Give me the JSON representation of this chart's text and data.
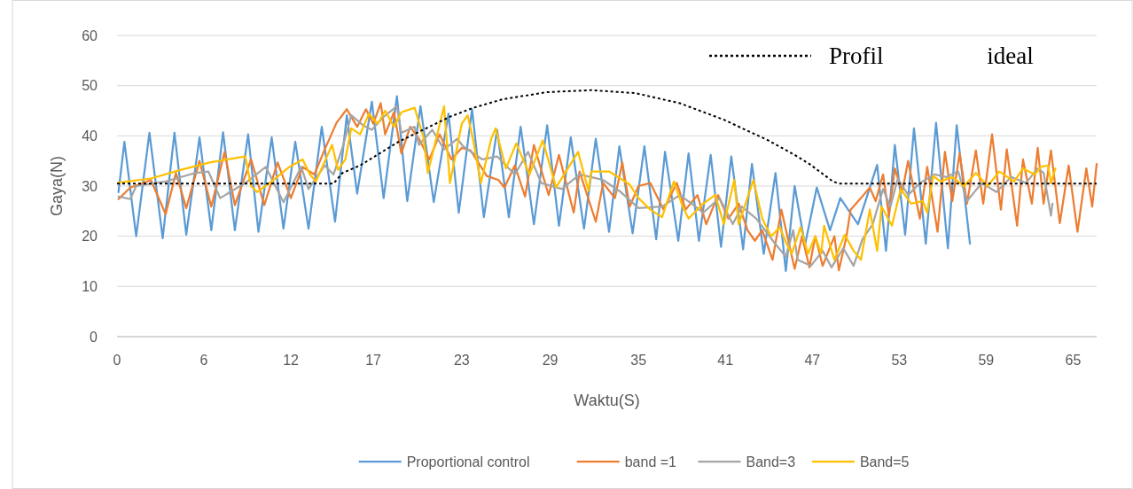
{
  "chart_data": {
    "type": "line",
    "xlabel": "Waktu(S)",
    "ylabel": "Gaya(N)",
    "xlim": [
      0,
      66.5
    ],
    "xticks": [
      0,
      {
        "value": 5.9,
        "label": "6"
      },
      {
        "value": 11.8,
        "label": "12"
      },
      {
        "value": 17.4,
        "label": "17"
      },
      {
        "value": 23.4,
        "label": "23"
      },
      {
        "value": 29.4,
        "label": "29"
      },
      {
        "value": 35.4,
        "label": "35"
      },
      {
        "value": 41.3,
        "label": "41"
      },
      {
        "value": 47.2,
        "label": "47"
      },
      {
        "value": 53.1,
        "label": "53"
      },
      {
        "value": 59,
        "label": "59"
      },
      {
        "value": 64.9,
        "label": "65"
      }
    ],
    "ylim": [
      0,
      60
    ],
    "yticks": [
      0,
      10,
      20,
      30,
      40,
      50,
      60
    ],
    "grid": "y",
    "legend": "bottom",
    "marker": "none",
    "series": [
      {
        "name": "Proportional control",
        "color": "#5b9bd5",
        "line_style": "solid",
        "x": [
          0.1,
          0.5,
          1.3,
          2.2,
          3.1,
          3.9,
          4.7,
          5.6,
          6.4,
          7.2,
          8.0,
          8.9,
          9.6,
          10.5,
          11.3,
          12.1,
          13.0,
          13.9,
          14.8,
          15.6,
          16.3,
          17.3,
          18.1,
          19.0,
          19.7,
          20.6,
          21.5,
          22.5,
          23.2,
          24.1,
          24.9,
          25.8,
          26.6,
          27.4,
          28.3,
          29.2,
          30.0,
          30.8,
          31.7,
          32.5,
          33.4,
          34.1,
          35.0,
          35.8,
          36.6,
          37.2,
          38.1,
          38.8,
          39.5,
          40.3,
          41.0,
          41.7,
          42.5,
          43.1,
          43.9,
          44.7,
          45.4,
          46.0,
          46.7,
          47.5,
          48.4,
          49.1,
          50.3,
          51.6,
          52.2,
          52.8,
          53.5,
          54.1,
          54.9,
          55.6,
          56.4,
          57.0,
          57.9
        ],
        "values": [
          28.8,
          38.8,
          20,
          40.6,
          19.6,
          40.6,
          20.3,
          39.7,
          21.2,
          40.7,
          21.2,
          40.3,
          20.9,
          39.7,
          21.5,
          38.8,
          21.5,
          41.8,
          22.9,
          44.1,
          28.5,
          46.8,
          27.6,
          47.9,
          27,
          45.9,
          26.8,
          44.4,
          24.7,
          45.3,
          23.8,
          41.2,
          23.8,
          41.8,
          22.4,
          42.1,
          22.1,
          39.7,
          21.5,
          39.4,
          20.9,
          37.9,
          20.6,
          37.9,
          19.4,
          36.8,
          19.1,
          36.5,
          19.1,
          36.2,
          17.9,
          35.9,
          17.4,
          34.4,
          16.5,
          32.6,
          13.1,
          30,
          18.2,
          29.7,
          21.2,
          27.6,
          22.4,
          34.2,
          17.1,
          38.2,
          20.3,
          41.5,
          18.5,
          42.6,
          17.6,
          42.1,
          18.5
        ]
      },
      {
        "name": "band =1",
        "color": "#ed7d31",
        "line_style": "solid",
        "x": [
          0.1,
          0.9,
          2.3,
          3.3,
          4.0,
          4.7,
          5.6,
          6.4,
          7.3,
          8.0,
          9.1,
          10.0,
          10.9,
          11.8,
          12.6,
          13.4,
          14.1,
          14.9,
          15.6,
          16.3,
          16.9,
          17.4,
          17.9,
          18.2,
          18.8,
          19.3,
          19.9,
          20.5,
          21.2,
          21.9,
          22.7,
          23.4,
          24.0,
          25.1,
          25.9,
          26.3,
          27.0,
          27.7,
          28.3,
          29.3,
          30.0,
          31.0,
          31.4,
          32.5,
          33.0,
          33.8,
          34.3,
          34.8,
          35.4,
          36.2,
          37.1,
          38.0,
          38.6,
          39.4,
          40.0,
          40.8,
          41.5,
          42.2,
          42.8,
          43.3,
          43.8,
          44.5,
          45.1,
          46.0,
          46.5,
          47.0,
          47.4,
          47.9,
          48.7,
          49.0,
          49.5,
          49.8,
          50.5,
          51.1,
          51.5,
          52.0,
          52.4,
          52.8,
          53.3,
          53.7,
          54.5,
          55.0,
          55.7,
          56.2,
          56.7,
          57.2,
          57.7,
          58.3,
          58.8,
          59.4,
          60.0,
          60.4,
          61.1,
          61.5,
          62.1,
          62.5,
          62.9,
          63.4,
          64.0,
          64.6,
          65.2,
          65.8,
          66.2,
          66.5
        ],
        "values": [
          27.4,
          29.7,
          31.2,
          24.4,
          32.6,
          25.6,
          35,
          25.9,
          36.8,
          26.2,
          35.3,
          26.2,
          34.7,
          27.6,
          33.8,
          32.3,
          37.3,
          42.6,
          45.3,
          41.8,
          45.3,
          42.4,
          46.5,
          40.3,
          44.7,
          36.5,
          41.8,
          39.4,
          35.3,
          40.3,
          35.3,
          37.6,
          37.1,
          32,
          31.2,
          29.7,
          34.1,
          27.9,
          38.2,
          28.2,
          36.2,
          24.7,
          32.9,
          22.9,
          30.6,
          27.6,
          34.7,
          25.9,
          30,
          30.6,
          25.3,
          30.6,
          25.3,
          28.2,
          22.4,
          28.2,
          23.5,
          26.5,
          21.2,
          19.1,
          21.2,
          15.3,
          25.3,
          13.5,
          20,
          13.8,
          20,
          14.1,
          20,
          13.2,
          19.7,
          25.3,
          27.6,
          29.7,
          27,
          32.3,
          24.1,
          33.5,
          28.8,
          35,
          23.5,
          33.8,
          20.9,
          36.8,
          27,
          36.5,
          26.5,
          37.1,
          26.5,
          40.3,
          25.3,
          37.3,
          22.1,
          35.3,
          26.5,
          37.6,
          26.5,
          37.1,
          22.6,
          34.1,
          20.9,
          33.5,
          25.9,
          34.4
        ]
      },
      {
        "name": "Band=3",
        "color": "#a5a5a5",
        "line_style": "solid",
        "x": [
          0.1,
          0.9,
          1.3,
          3.3,
          5.3,
          6.2,
          7.0,
          8.7,
          10.1,
          11.3,
          12.5,
          13.0,
          14.1,
          14.7,
          15.3,
          15.9,
          16.7,
          17.3,
          18.1,
          19.0,
          19.3,
          20.2,
          20.5,
          21.4,
          22.2,
          23.1,
          23.5,
          24.8,
          25.8,
          27.0,
          27.9,
          28.8,
          30.2,
          31.4,
          33.0,
          34.2,
          35.4,
          37.0,
          38.2,
          39.0,
          39.8,
          40.9,
          41.8,
          42.4,
          43.4,
          44.6,
          45.4,
          45.9,
          46.2,
          47.1,
          47.9,
          48.5,
          49.3,
          50.0,
          50.6,
          51.3,
          52.0,
          52.5,
          53.0,
          53.7,
          54.5,
          55.5,
          56.3,
          57.1,
          57.7,
          58.7,
          59.7,
          60.7,
          61.7,
          62.5,
          62.9,
          63.4,
          63.5
        ],
        "values": [
          27.9,
          27.4,
          30,
          30.9,
          32.6,
          32.9,
          27.6,
          30.6,
          33.8,
          26.8,
          33.8,
          29.4,
          34.1,
          32.3,
          37.6,
          44.1,
          42.1,
          41.2,
          43.8,
          45.9,
          40.6,
          41.8,
          38.2,
          41.2,
          37.3,
          39.4,
          37.9,
          35.3,
          35.9,
          32.3,
          36.8,
          30.6,
          29.4,
          32.3,
          31.2,
          28.8,
          25.6,
          25.9,
          28.2,
          26.5,
          24.7,
          27.6,
          22.4,
          25.9,
          23.5,
          18.8,
          15.9,
          21.2,
          15.3,
          14.1,
          17.1,
          13.8,
          17.6,
          14.1,
          19.4,
          22.4,
          29.4,
          25.9,
          31.5,
          28.2,
          30.6,
          32.3,
          31.8,
          32.9,
          27,
          30.6,
          28.8,
          31.8,
          30.6,
          33.5,
          32.6,
          24.1,
          26.5
        ]
      },
      {
        "name": "Band=5",
        "color": "#ffc000",
        "line_style": "solid",
        "x": [
          0.1,
          2.3,
          4.3,
          6.3,
          8.7,
          9.1,
          9.5,
          10.5,
          11.7,
          12.6,
          13.1,
          13.5,
          14.6,
          15.0,
          15.5,
          15.9,
          16.5,
          17.1,
          17.7,
          18.2,
          18.8,
          19.3,
          20.2,
          20.8,
          21.1,
          22.2,
          22.6,
          23.4,
          23.8,
          24.2,
          24.7,
          25.4,
          25.7,
          26.4,
          27.1,
          28.0,
          28.9,
          29.8,
          31.3,
          32.0,
          32.2,
          33.4,
          34.0,
          34.8,
          35.4,
          36.2,
          37.0,
          37.8,
          38.4,
          38.8,
          39.8,
          40.6,
          41.2,
          41.9,
          42.2,
          43.2,
          43.8,
          44.4,
          45.0,
          45.4,
          45.8,
          46.4,
          46.9,
          47.4,
          47.8,
          48.0,
          48.7,
          49.4,
          50.0,
          50.5,
          51.1,
          51.6,
          51.9,
          52.6,
          53.2,
          53.9,
          54.7,
          55.0,
          55.4,
          55.9,
          56.7,
          57.5,
          58.3,
          59.1,
          59.9,
          60.9,
          61.5,
          62.3,
          62.7,
          63.2,
          63.4,
          63.7
        ],
        "values": [
          30.7,
          31.5,
          33.2,
          34.7,
          35.9,
          30,
          28.8,
          30.9,
          33.8,
          35.3,
          32.3,
          30.9,
          38.2,
          33.2,
          35.3,
          41.5,
          40.3,
          44.4,
          42.4,
          45,
          41.8,
          44.7,
          45.6,
          39.7,
          32.6,
          45.9,
          30.6,
          42.4,
          44.1,
          38.8,
          30.6,
          39.4,
          41.5,
          33.5,
          38.5,
          32.3,
          39.1,
          29.7,
          36.8,
          29.1,
          32.9,
          32.9,
          31.8,
          30.3,
          27.6,
          25.3,
          23.8,
          30.9,
          25.9,
          23.5,
          26.5,
          28.2,
          22.4,
          31.2,
          22.4,
          31.2,
          23.5,
          20,
          21.8,
          18.8,
          16.5,
          21.8,
          16.5,
          20,
          16.5,
          22.1,
          15.3,
          20.3,
          17.1,
          15.3,
          25.3,
          17.1,
          25.9,
          22.1,
          29.4,
          26.5,
          27,
          24.7,
          32,
          30.9,
          31.8,
          30,
          32.6,
          30,
          32.9,
          30.9,
          33.5,
          32.3,
          33.8,
          34.1,
          30.6,
          33.5
        ]
      },
      {
        "name": "Profil ideal",
        "color": "#000000",
        "line_style": "dotted",
        "x": [
          0,
          14.7,
          15.3,
          16.5,
          19.1,
          22.6,
          24.2,
          26.2,
          29.2,
          32.2,
          35.2,
          38.2,
          41.2,
          44.2,
          46.0,
          47.0,
          48.6,
          49.0,
          66.5
        ],
        "values": [
          30.5,
          30.5,
          32.6,
          34.1,
          38.8,
          43.8,
          45.6,
          47.3,
          48.7,
          49.1,
          48.5,
          46.5,
          43.2,
          39.1,
          36.2,
          34.4,
          30.9,
          30.5,
          30.5
        ]
      }
    ]
  }
}
